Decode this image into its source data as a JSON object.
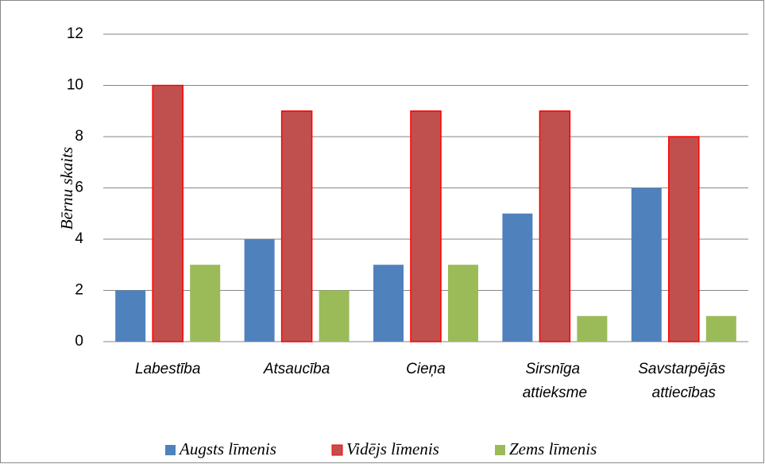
{
  "chart_data": {
    "type": "bar",
    "y_label": "Bērnu skaits",
    "categories": [
      "Labestība",
      "Atsaucība",
      "Cieņa",
      "Sirsnīga attieksme",
      "Savstarpējās attiecības"
    ],
    "series": [
      {
        "name": "Augsts līmenis",
        "color": "#4f81bd",
        "values": [
          2,
          4,
          3,
          5,
          6
        ]
      },
      {
        "name": "Vidējs līmenis",
        "color": "#c0504d",
        "values": [
          10,
          9,
          9,
          9,
          8
        ]
      },
      {
        "name": "Zems līmenis",
        "color": "#9bbb59",
        "values": [
          3,
          2,
          3,
          1,
          1
        ]
      }
    ],
    "ylim": [
      0,
      12
    ],
    "yticks": [
      0,
      2,
      4,
      6,
      8,
      10,
      12
    ],
    "grid": true,
    "legend": "bottom"
  }
}
